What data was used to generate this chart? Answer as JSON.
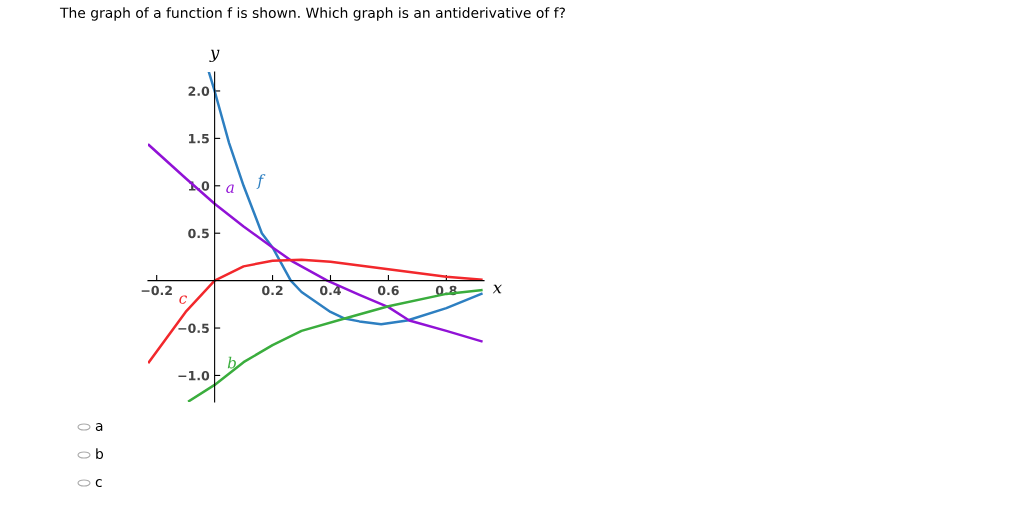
{
  "chart_data": {
    "type": "line",
    "title": "The graph of a function f is shown. Which graph is an antiderivative of f?",
    "xlabel": "x",
    "ylabel": "y",
    "xlim": [
      -0.23,
      0.93
    ],
    "ylim": [
      -1.28,
      2.2
    ],
    "xticks": [
      {
        "value": -0.2,
        "label": "−0.2"
      },
      0.2,
      0.4,
      0.6,
      0.8
    ],
    "yticks": [
      {
        "value": -1.0,
        "label": "−1.0"
      },
      {
        "value": -0.5,
        "label": "−0.5"
      },
      0.5,
      {
        "value": 1.0,
        "label": "1.0"
      },
      1.5,
      {
        "value": 2.0,
        "label": "2.0"
      }
    ],
    "grid": false,
    "legend": false,
    "marker": "none",
    "line_style": "solid",
    "series": [
      {
        "name": "f",
        "color": "#2d7fc1",
        "x": [
          -0.019,
          0,
          0.05,
          0.1,
          0.163,
          0.2,
          0.263,
          0.3,
          0.4,
          0.449,
          0.5,
          0.575,
          0.665,
          0.8,
          0.921
        ],
        "values": [
          2.19,
          2.0,
          1.45,
          1.0,
          0.5,
          0.35,
          0.0,
          -0.12,
          -0.33,
          -0.4,
          -0.43,
          -0.46,
          -0.42,
          -0.29,
          -0.14
        ]
      },
      {
        "name": "a",
        "color": "#9112d6",
        "x": [
          -0.227,
          -0.1,
          0,
          0.1,
          0.2,
          0.27,
          0.389,
          0.5,
          0.6,
          0.672,
          0.8,
          0.921
        ],
        "values": [
          1.43,
          1.08,
          0.81,
          0.57,
          0.35,
          0.2,
          0.0,
          -0.15,
          -0.28,
          -0.42,
          -0.53,
          -0.64
        ]
      },
      {
        "name": "b",
        "color": "#3aad3d",
        "x": [
          -0.088,
          0,
          0.1,
          0.2,
          0.3,
          0.449,
          0.6,
          0.8,
          0.921
        ],
        "values": [
          -1.27,
          -1.1,
          -0.86,
          -0.68,
          -0.53,
          -0.4,
          -0.27,
          -0.14,
          -0.1
        ]
      },
      {
        "name": "c",
        "color": "#f2282c",
        "x": [
          -0.227,
          -0.1,
          0,
          0.1,
          0.2,
          0.3,
          0.4,
          0.5,
          0.6,
          0.7,
          0.8,
          0.921
        ],
        "values": [
          -0.86,
          -0.33,
          0.0,
          0.15,
          0.21,
          0.22,
          0.2,
          0.16,
          0.12,
          0.08,
          0.04,
          0.01
        ]
      }
    ],
    "annotations": [
      "a",
      "b",
      "c"
    ]
  }
}
